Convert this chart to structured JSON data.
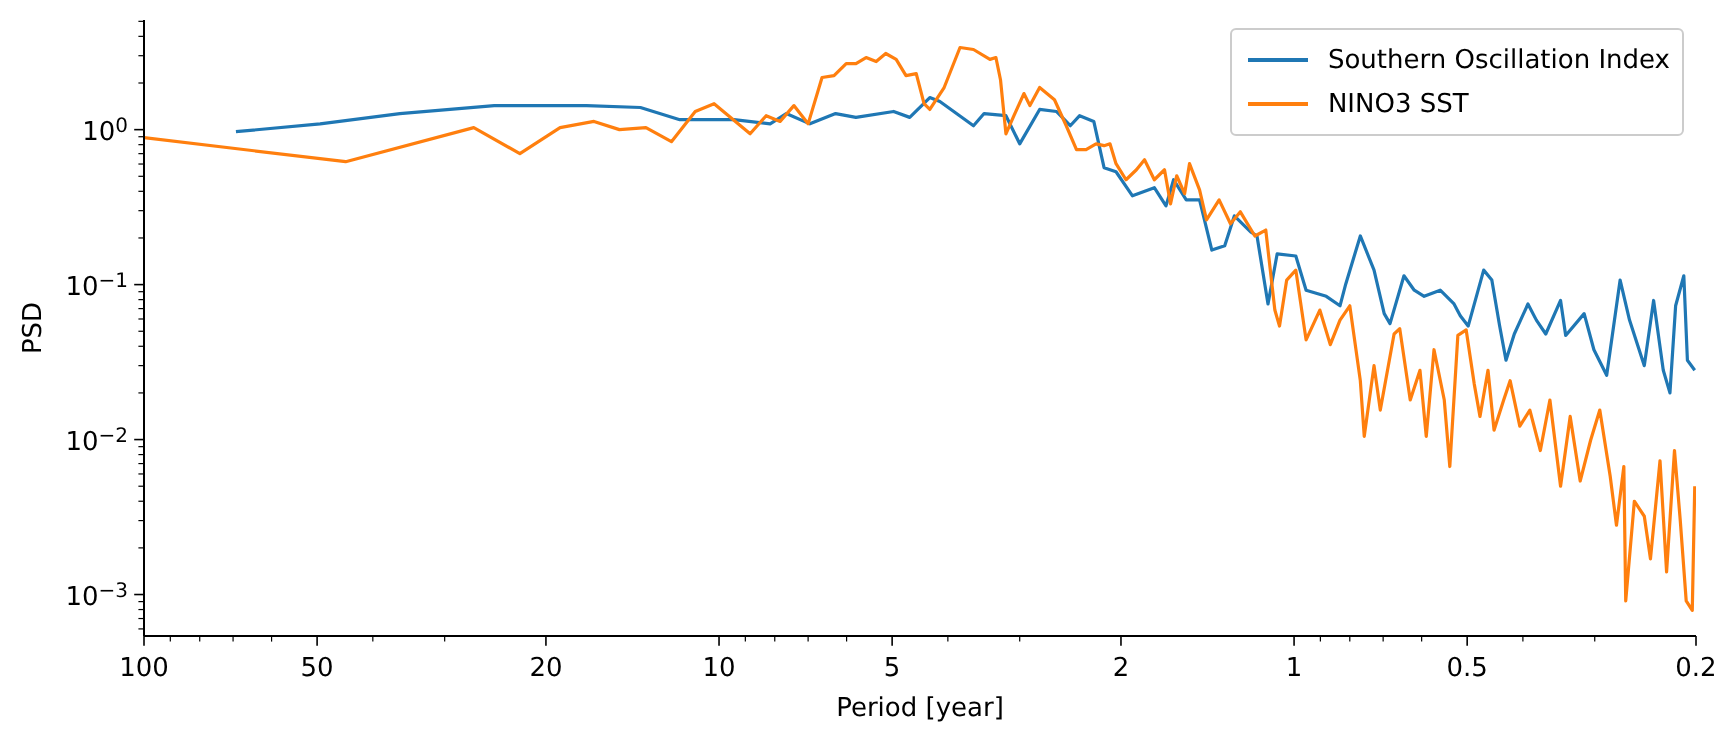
{
  "chart_data": {
    "type": "line",
    "xlabel": "Period [year]",
    "ylabel": "PSD",
    "log": "xy",
    "legend": "top right",
    "marker": "none",
    "line_style": "solid",
    "xlim": [
      100,
      0.2
    ],
    "xticks": [
      100,
      {
        "value": 90,
        "label": null
      },
      {
        "value": 80,
        "label": null
      },
      {
        "value": 70,
        "label": null
      },
      {
        "value": 60,
        "label": null
      },
      50,
      {
        "value": 40,
        "label": null
      },
      {
        "value": 30,
        "label": null
      },
      20,
      10,
      {
        "value": 9,
        "label": null
      },
      {
        "value": 8,
        "label": null
      },
      {
        "value": 7,
        "label": null
      },
      {
        "value": 6,
        "label": null
      },
      5,
      {
        "value": 4,
        "label": null
      },
      {
        "value": 3,
        "label": null
      },
      2,
      1,
      {
        "value": 0.9,
        "label": null
      },
      {
        "value": 0.8,
        "label": null
      },
      {
        "value": 0.7,
        "label": null
      },
      {
        "value": 0.6,
        "label": null
      },
      0.5,
      {
        "value": 0.4,
        "label": null
      },
      {
        "value": 0.3,
        "label": null
      },
      0.2
    ],
    "ylim": [
      0.00054,
      5.1
    ],
    "yticks": [
      {
        "value": 0.0006,
        "label": null
      },
      {
        "value": 0.0007,
        "label": null
      },
      {
        "value": 0.0008,
        "label": null
      },
      {
        "value": 0.0009,
        "label": null
      },
      {
        "value": 0.001,
        "label": "10$^{−3}$"
      },
      {
        "value": 0.002,
        "label": null
      },
      {
        "value": 0.003,
        "label": null
      },
      {
        "value": 0.004,
        "label": null
      },
      {
        "value": 0.005,
        "label": null
      },
      {
        "value": 0.006,
        "label": null
      },
      {
        "value": 0.007,
        "label": null
      },
      {
        "value": 0.008,
        "label": null
      },
      {
        "value": 0.009,
        "label": null
      },
      {
        "value": 0.01,
        "label": "10$^{−2}$"
      },
      {
        "value": 0.02,
        "label": null
      },
      {
        "value": 0.03,
        "label": null
      },
      {
        "value": 0.04,
        "label": null
      },
      {
        "value": 0.05,
        "label": null
      },
      {
        "value": 0.06,
        "label": null
      },
      {
        "value": 0.07,
        "label": null
      },
      {
        "value": 0.08,
        "label": null
      },
      {
        "value": 0.09,
        "label": null
      },
      {
        "value": 0.1,
        "label": "10$^{−1}$"
      },
      {
        "value": 0.2,
        "label": null
      },
      {
        "value": 0.3,
        "label": null
      },
      {
        "value": 0.4,
        "label": null
      },
      {
        "value": 0.5,
        "label": null
      },
      {
        "value": 0.6,
        "label": null
      },
      {
        "value": 0.7,
        "label": null
      },
      {
        "value": 0.8,
        "label": null
      },
      {
        "value": 0.9,
        "label": null
      },
      {
        "value": 1,
        "label": "10$^{0}$"
      },
      {
        "value": 2,
        "label": null
      },
      {
        "value": 3,
        "label": null
      },
      {
        "value": 4,
        "label": null
      },
      {
        "value": 5,
        "label": null
      }
    ],
    "series": [
      {
        "name": "Southern Oscillation Index",
        "color": "#1f77b4",
        "x": [
          69.2,
          49.4,
          35.9,
          24.6,
          17.0,
          13.7,
          11.7,
          9.42,
          8.15,
          7.64,
          6.95,
          6.27,
          5.78,
          4.97,
          4.66,
          4.3,
          4.13,
          3.61,
          3.46,
          3.17,
          3.0,
          2.77,
          2.59,
          2.45,
          2.36,
          2.23,
          2.14,
          2.04,
          1.91,
          1.75,
          1.67,
          1.62,
          1.54,
          1.46,
          1.39,
          1.32,
          1.27,
          1.19,
          1.16,
          1.11,
          1.07,
          0.993,
          0.953,
          0.879,
          0.832,
          0.813,
          0.767,
          0.726,
          0.697,
          0.681,
          0.644,
          0.618,
          0.594,
          0.557,
          0.527,
          0.514,
          0.498,
          0.468,
          0.453,
          0.439,
          0.428,
          0.414,
          0.392,
          0.379,
          0.365,
          0.344,
          0.337,
          0.313,
          0.301,
          0.286,
          0.271,
          0.261,
          0.246,
          0.237,
          0.228,
          0.222,
          0.217,
          0.21,
          0.207,
          0.201
        ],
        "values": [
          0.97,
          1.09,
          1.27,
          1.43,
          1.43,
          1.39,
          1.16,
          1.16,
          1.09,
          1.27,
          1.09,
          1.27,
          1.2,
          1.31,
          1.2,
          1.61,
          1.52,
          1.06,
          1.27,
          1.23,
          0.81,
          1.35,
          1.31,
          1.06,
          1.23,
          1.13,
          0.568,
          0.535,
          0.374,
          0.422,
          0.322,
          0.475,
          0.352,
          0.352,
          0.167,
          0.178,
          0.278,
          0.219,
          0.206,
          0.075,
          0.158,
          0.153,
          0.092,
          0.084,
          0.073,
          0.101,
          0.206,
          0.124,
          0.065,
          0.056,
          0.114,
          0.092,
          0.084,
          0.092,
          0.075,
          0.063,
          0.054,
          0.124,
          0.107,
          0.054,
          0.0325,
          0.048,
          0.075,
          0.059,
          0.048,
          0.079,
          0.047,
          0.065,
          0.038,
          0.026,
          0.107,
          0.059,
          0.03,
          0.079,
          0.028,
          0.02,
          0.073,
          0.114,
          0.0325,
          0.028
        ]
      },
      {
        "name": "NINO3 SST",
        "color": "#ff7f0e",
        "x": [
          100,
          44.6,
          26.7,
          22.2,
          18.9,
          16.5,
          14.9,
          13.4,
          12.1,
          11.0,
          10.2,
          8.83,
          8.28,
          7.83,
          7.41,
          7.0,
          6.62,
          6.31,
          6.01,
          5.78,
          5.55,
          5.33,
          5.13,
          4.92,
          4.73,
          4.54,
          4.4,
          4.3,
          4.06,
          3.81,
          3.61,
          3.38,
          3.3,
          3.24,
          3.17,
          3.07,
          2.95,
          2.88,
          2.77,
          2.61,
          2.49,
          2.39,
          2.3,
          2.21,
          2.14,
          2.09,
          2.04,
          1.96,
          1.88,
          1.82,
          1.75,
          1.68,
          1.64,
          1.6,
          1.55,
          1.52,
          1.46,
          1.42,
          1.35,
          1.29,
          1.24,
          1.17,
          1.12,
          1.08,
          1.06,
          1.03,
          0.993,
          0.953,
          0.902,
          0.865,
          0.832,
          0.8,
          0.767,
          0.755,
          0.726,
          0.708,
          0.67,
          0.655,
          0.628,
          0.604,
          0.589,
          0.571,
          0.548,
          0.536,
          0.519,
          0.502,
          0.486,
          0.475,
          0.46,
          0.449,
          0.432,
          0.421,
          0.405,
          0.389,
          0.373,
          0.359,
          0.344,
          0.331,
          0.318,
          0.305,
          0.294,
          0.282,
          0.275,
          0.267,
          0.265,
          0.256,
          0.246,
          0.24,
          0.231,
          0.225,
          0.218,
          0.213,
          0.208,
          0.203,
          0.201
        ],
        "values": [
          0.888,
          0.621,
          1.03,
          0.7,
          1.03,
          1.13,
          1.0,
          1.03,
          0.836,
          1.31,
          1.47,
          0.94,
          1.23,
          1.13,
          1.43,
          1.09,
          2.17,
          2.23,
          2.67,
          2.67,
          2.92,
          2.75,
          3.1,
          2.84,
          2.23,
          2.3,
          1.47,
          1.35,
          1.87,
          3.39,
          3.29,
          2.84,
          2.92,
          2.1,
          0.94,
          1.23,
          1.71,
          1.43,
          1.87,
          1.56,
          1.06,
          0.743,
          0.743,
          0.81,
          0.788,
          0.81,
          0.603,
          0.475,
          0.551,
          0.64,
          0.475,
          0.551,
          0.332,
          0.504,
          0.386,
          0.603,
          0.409,
          0.262,
          0.352,
          0.247,
          0.295,
          0.206,
          0.225,
          0.0685,
          0.054,
          0.107,
          0.124,
          0.044,
          0.0685,
          0.041,
          0.059,
          0.073,
          0.024,
          0.0105,
          0.03,
          0.0155,
          0.048,
          0.052,
          0.018,
          0.028,
          0.0105,
          0.038,
          0.018,
          0.0067,
          0.047,
          0.051,
          0.0228,
          0.0141,
          0.028,
          0.0115,
          0.018,
          0.024,
          0.0122,
          0.0155,
          0.0085,
          0.018,
          0.005,
          0.0141,
          0.0054,
          0.0099,
          0.0155,
          0.0058,
          0.0028,
          0.0067,
          0.00091,
          0.004,
          0.0032,
          0.0017,
          0.0073,
          0.0014,
          0.0085,
          0.003,
          0.00091,
          0.00079,
          0.005
        ]
      }
    ]
  }
}
